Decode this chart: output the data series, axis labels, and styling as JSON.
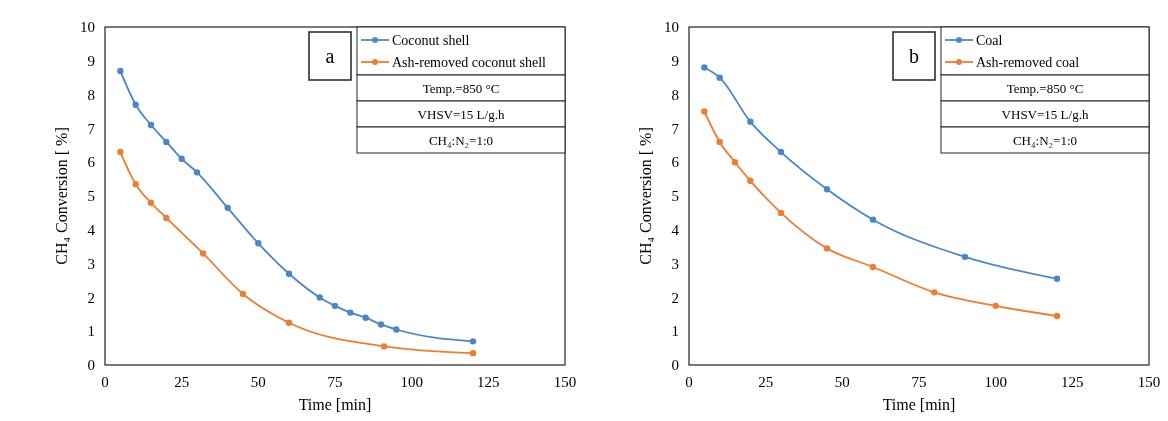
{
  "chart_data": [
    {
      "type": "line",
      "xlabel": "Time [min]",
      "ylabel": "CH₄ Conversion [ %]",
      "xlim": [
        0,
        150
      ],
      "xticks": [
        0,
        25,
        50,
        75,
        100,
        125,
        150
      ],
      "ylim": [
        0,
        10
      ],
      "yticks": [
        0,
        1,
        2,
        3,
        4,
        5,
        6,
        7,
        8,
        9,
        10
      ],
      "marker": "circle",
      "legend": "top right",
      "grid": false,
      "annotations": [
        "a",
        "Temp.=850 °C",
        "VHSV=15 L/g.h",
        "CH₄:N₂=1:0"
      ],
      "series": [
        {
          "name": "Coconut shell",
          "color": "#4a86c8",
          "x": [
            5,
            10,
            15,
            20,
            25,
            30,
            40,
            50,
            60,
            70,
            75,
            80,
            85,
            90,
            95,
            120
          ],
          "values": [
            8.7,
            7.7,
            7.1,
            6.6,
            6.1,
            5.7,
            4.65,
            3.6,
            2.7,
            2.0,
            1.75,
            1.55,
            1.4,
            1.2,
            1.05,
            0.7
          ]
        },
        {
          "name": "Ash-removed coconut shell",
          "color": "#ed7d31",
          "x": [
            5,
            10,
            15,
            20,
            32,
            45,
            60,
            91,
            120
          ],
          "values": [
            6.3,
            5.35,
            4.8,
            4.35,
            3.3,
            2.1,
            1.25,
            0.55,
            0.35
          ]
        }
      ]
    },
    {
      "type": "line",
      "xlabel": "Time [min]",
      "ylabel": "CH₄ Conversion [ %]",
      "xlim": [
        0,
        150
      ],
      "xticks": [
        0,
        25,
        50,
        75,
        100,
        125,
        150
      ],
      "ylim": [
        0,
        10
      ],
      "yticks": [
        0,
        1,
        2,
        3,
        4,
        5,
        6,
        7,
        8,
        9,
        10
      ],
      "marker": "circle",
      "legend": "top right",
      "grid": false,
      "annotations": [
        "b",
        "Temp.=850 °C",
        "VHSV=15 L/g.h",
        "CH₄:N₂=1:0"
      ],
      "series": [
        {
          "name": "Coal",
          "color": "#4a86c8",
          "x": [
            5,
            10,
            20,
            30,
            45,
            60,
            90,
            120
          ],
          "values": [
            8.8,
            8.5,
            7.2,
            6.3,
            5.2,
            4.3,
            3.2,
            2.55
          ]
        },
        {
          "name": "Ash-removed coal",
          "color": "#ed7d31",
          "x": [
            5,
            10,
            15,
            20,
            30,
            45,
            60,
            80,
            100,
            120
          ],
          "values": [
            7.5,
            6.6,
            6.0,
            5.45,
            4.5,
            3.45,
            2.9,
            2.15,
            1.75,
            1.45
          ]
        }
      ]
    }
  ]
}
